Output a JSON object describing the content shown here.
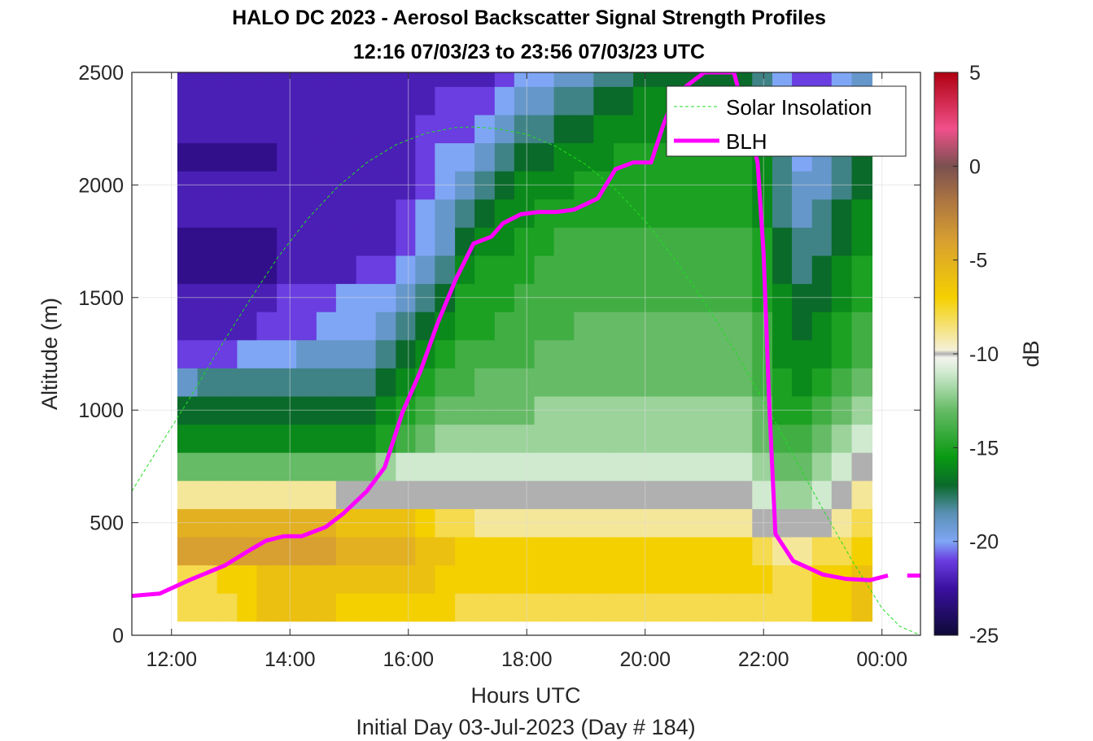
{
  "chart_data": {
    "type": "heatmap",
    "title": "HALO DC 2023 - Aerosol Backscatter Signal Strength Profiles",
    "subtitle": "12:16 07/03/23 to 23:56 07/03/23  UTC",
    "xlabel": "Hours UTC",
    "xlabel2": "Initial Day 03-Jul-2023 (Day # 184)",
    "ylabel": "Altitude (m)",
    "colorbar_label": "dB",
    "xlim": [
      11.33,
      24.65
    ],
    "ylim": [
      0,
      2500
    ],
    "clim": [
      -25,
      5
    ],
    "x_tick_labels": [
      "12:00",
      "14:00",
      "16:00",
      "18:00",
      "20:00",
      "22:00",
      "00:00"
    ],
    "x_tick_values": [
      12,
      14,
      16,
      18,
      20,
      22,
      24
    ],
    "y_tick_values": [
      0,
      500,
      1000,
      1500,
      2000,
      2500
    ],
    "colorbar_ticks": [
      5,
      0,
      -5,
      -10,
      -15,
      -20,
      -25
    ],
    "colormap": [
      {
        "v": -25,
        "c": "#0d0a35"
      },
      {
        "v": -22.5,
        "c": "#3a10a0"
      },
      {
        "v": -21,
        "c": "#6a3ee0"
      },
      {
        "v": -20,
        "c": "#7fa6f5"
      },
      {
        "v": -18.5,
        "c": "#5a90b4"
      },
      {
        "v": -17,
        "c": "#0a6a2a"
      },
      {
        "v": -15.5,
        "c": "#0a9a12"
      },
      {
        "v": -13,
        "c": "#66bb66"
      },
      {
        "v": -11,
        "c": "#d0ead0"
      },
      {
        "v": -10.2,
        "c": "#f4f4ee"
      },
      {
        "v": -10,
        "c": "#b0b0b0"
      },
      {
        "v": -9.8,
        "c": "#f5f0d8"
      },
      {
        "v": -7,
        "c": "#f5d000"
      },
      {
        "v": -4,
        "c": "#d8a030"
      },
      {
        "v": -2,
        "c": "#b07840"
      },
      {
        "v": 0,
        "c": "#7a5050"
      },
      {
        "v": 2,
        "c": "#f0508a"
      },
      {
        "v": 5,
        "c": "#b00010"
      }
    ],
    "heatmap": {
      "x_start": 12.27,
      "x_end": 23.93,
      "y_start": 125,
      "y_end": 2500,
      "altitude_levels": [
        125,
        250,
        375,
        500,
        625,
        750,
        875,
        1000,
        1125,
        1250,
        1375,
        1500,
        1625,
        1750,
        1875,
        2000,
        2125,
        2250,
        2375,
        2500
      ],
      "hours": [
        12.27,
        12.61,
        12.94,
        13.28,
        13.61,
        13.95,
        14.28,
        14.62,
        14.95,
        15.29,
        15.62,
        15.96,
        16.29,
        16.62,
        16.96,
        17.29,
        17.63,
        17.96,
        18.3,
        18.63,
        18.97,
        19.3,
        19.64,
        19.97,
        20.31,
        20.64,
        20.98,
        21.31,
        21.65,
        21.98,
        22.32,
        22.65,
        22.99,
        23.32,
        23.66
      ],
      "profiles_db": [
        [
          -8,
          -8,
          -4,
          -5,
          -9,
          -13,
          -16,
          -17,
          -19,
          -21,
          -22,
          -22,
          -23,
          -23,
          -22,
          -22,
          -23,
          -22,
          -22,
          -22
        ],
        [
          -8,
          -8,
          -4,
          -5,
          -9,
          -13,
          -16,
          -17,
          -18,
          -21,
          -22,
          -22,
          -23,
          -23,
          -22,
          -22,
          -23,
          -22,
          -22,
          -22
        ],
        [
          -8,
          -7,
          -4,
          -5,
          -9,
          -13,
          -16,
          -17,
          -18,
          -21,
          -22,
          -22,
          -23,
          -23,
          -22,
          -22,
          -23,
          -22,
          -22,
          -22
        ],
        [
          -7,
          -7,
          -4,
          -5,
          -9,
          -13,
          -16,
          -17,
          -18,
          -20,
          -22,
          -22,
          -23,
          -23,
          -22,
          -22,
          -23,
          -22,
          -22,
          -22
        ],
        [
          -6,
          -6,
          -4,
          -5,
          -9,
          -13,
          -16,
          -17,
          -18,
          -20,
          -21,
          -22,
          -23,
          -23,
          -22,
          -22,
          -23,
          -22,
          -22,
          -22
        ],
        [
          -6,
          -6,
          -4,
          -5,
          -9,
          -13,
          -16,
          -17,
          -18,
          -20,
          -21,
          -21,
          -22,
          -22,
          -22,
          -22,
          -22,
          -22,
          -22,
          -22
        ],
        [
          -6,
          -6,
          -4,
          -5,
          -9,
          -13,
          -16,
          -17,
          -18,
          -19,
          -21,
          -21,
          -22,
          -22,
          -22,
          -22,
          -22,
          -22,
          -22,
          -22
        ],
        [
          -6,
          -6,
          -4,
          -5,
          -9,
          -13,
          -16,
          -17,
          -18,
          -19,
          -20,
          -21,
          -22,
          -22,
          -22,
          -22,
          -22,
          -22,
          -22,
          -22
        ],
        [
          -7,
          -6,
          -5,
          -6,
          -10,
          -13,
          -16,
          -17,
          -18,
          -19,
          -20,
          -20,
          -22,
          -22,
          -22,
          -22,
          -22,
          -22,
          -22,
          -22
        ],
        [
          -7,
          -6,
          -5,
          -6,
          -10,
          -13,
          -16,
          -17,
          -18,
          -19,
          -20,
          -20,
          -21,
          -22,
          -22,
          -22,
          -22,
          -22,
          -22,
          -22
        ],
        [
          -7,
          -6,
          -5,
          -6,
          -10,
          -12,
          -15,
          -16,
          -17,
          -18,
          -19,
          -20,
          -21,
          -22,
          -22,
          -22,
          -22,
          -22,
          -22,
          -22
        ],
        [
          -7,
          -6,
          -5,
          -6,
          -10,
          -11,
          -14,
          -15,
          -16,
          -17,
          -18,
          -19,
          -20,
          -21,
          -21,
          -22,
          -22,
          -22,
          -22,
          -22
        ],
        [
          -7,
          -6,
          -6,
          -7,
          -10,
          -11,
          -13,
          -14,
          -15,
          -16,
          -17,
          -18,
          -19,
          -20,
          -20,
          -21,
          -21,
          -21,
          -22,
          -22
        ],
        [
          -7,
          -7,
          -6,
          -8,
          -10,
          -11,
          -12,
          -13,
          -14,
          -15,
          -16,
          -17,
          -18,
          -19,
          -19,
          -20,
          -20,
          -21,
          -21,
          -22
        ],
        [
          -8,
          -7,
          -7,
          -8,
          -10,
          -11,
          -12,
          -13,
          -14,
          -14,
          -15,
          -15,
          -16,
          -17,
          -18,
          -19,
          -20,
          -21,
          -21,
          -22
        ],
        [
          -8,
          -7,
          -7,
          -9,
          -10,
          -11,
          -12,
          -13,
          -13,
          -14,
          -15,
          -15,
          -15,
          -16,
          -17,
          -18,
          -19,
          -20,
          -21,
          -22
        ],
        [
          -8,
          -7,
          -7,
          -9,
          -10,
          -11,
          -12,
          -13,
          -13,
          -14,
          -14,
          -15,
          -15,
          -16,
          -16,
          -17,
          -18,
          -19,
          -20,
          -21
        ],
        [
          -8,
          -7,
          -7,
          -9,
          -10,
          -11,
          -12,
          -13,
          -13,
          -14,
          -14,
          -14,
          -15,
          -15,
          -16,
          -16,
          -17,
          -18,
          -19,
          -20
        ],
        [
          -8,
          -7,
          -7,
          -9,
          -10,
          -11,
          -12,
          -12,
          -13,
          -13,
          -14,
          -14,
          -14,
          -15,
          -15,
          -16,
          -17,
          -18,
          -19,
          -20
        ],
        [
          -8,
          -7,
          -7,
          -9,
          -10,
          -11,
          -12,
          -12,
          -13,
          -13,
          -14,
          -14,
          -14,
          -14,
          -15,
          -16,
          -16,
          -17,
          -18,
          -19
        ],
        [
          -8,
          -7,
          -7,
          -9,
          -10,
          -11,
          -12,
          -12,
          -13,
          -13,
          -13,
          -14,
          -14,
          -14,
          -15,
          -15,
          -16,
          -17,
          -18,
          -19
        ],
        [
          -8,
          -7,
          -7,
          -9,
          -10,
          -11,
          -12,
          -12,
          -13,
          -13,
          -13,
          -14,
          -14,
          -14,
          -15,
          -15,
          -16,
          -16,
          -17,
          -18
        ],
        [
          -8,
          -7,
          -7,
          -9,
          -10,
          -11,
          -12,
          -12,
          -13,
          -13,
          -13,
          -14,
          -14,
          -14,
          -15,
          -15,
          -15,
          -16,
          -17,
          -18
        ],
        [
          -8,
          -7,
          -7,
          -9,
          -10,
          -11,
          -12,
          -12,
          -13,
          -13,
          -13,
          -14,
          -14,
          -14,
          -15,
          -15,
          -15,
          -16,
          -16,
          -17
        ],
        [
          -8,
          -7,
          -7,
          -9,
          -10,
          -11,
          -12,
          -12,
          -13,
          -13,
          -13,
          -14,
          -14,
          -14,
          -15,
          -15,
          -15,
          -16,
          -16,
          -17
        ],
        [
          -8,
          -7,
          -7,
          -9,
          -10,
          -11,
          -12,
          -12,
          -13,
          -13,
          -13,
          -14,
          -14,
          -14,
          -15,
          -15,
          -15,
          -16,
          -16,
          -17
        ],
        [
          -8,
          -7,
          -7,
          -9,
          -10,
          -11,
          -12,
          -12,
          -13,
          -13,
          -13,
          -14,
          -14,
          -14,
          -15,
          -15,
          -15,
          -16,
          -16,
          -17
        ],
        [
          -8,
          -7,
          -7,
          -9,
          -10,
          -11,
          -12,
          -12,
          -13,
          -13,
          -13,
          -14,
          -14,
          -14,
          -15,
          -15,
          -15,
          -16,
          -16,
          -17
        ],
        [
          -8,
          -7,
          -7,
          -9,
          -10,
          -11,
          -12,
          -12,
          -13,
          -13,
          -13,
          -14,
          -14,
          -14,
          -15,
          -15,
          -15,
          -16,
          -16,
          -17
        ],
        [
          -8,
          -7,
          -8,
          -10,
          -11,
          -12,
          -13,
          -13,
          -14,
          -14,
          -14,
          -15,
          -15,
          -15,
          -16,
          -16,
          -16,
          -17,
          -17,
          -18
        ],
        [
          -8,
          -8,
          -9,
          -10,
          -12,
          -13,
          -14,
          -15,
          -15,
          -16,
          -16,
          -16,
          -17,
          -17,
          -18,
          -18,
          -18,
          -19,
          -19,
          -20
        ],
        [
          -8,
          -8,
          -9,
          -10,
          -12,
          -13,
          -14,
          -15,
          -16,
          -16,
          -17,
          -17,
          -18,
          -18,
          -19,
          -19,
          -20,
          -20,
          -21,
          -21
        ],
        [
          -7,
          -7,
          -8,
          -10,
          -11,
          -12,
          -13,
          -14,
          -15,
          -16,
          -16,
          -17,
          -17,
          -18,
          -18,
          -19,
          -19,
          -20,
          -20,
          -21
        ],
        [
          -7,
          -7,
          -8,
          -9,
          -10,
          -11,
          -12,
          -13,
          -14,
          -15,
          -15,
          -16,
          -16,
          -17,
          -17,
          -18,
          -18,
          -19,
          -19,
          -20
        ],
        [
          -6,
          -6,
          -7,
          -8,
          -9,
          -10,
          -11,
          -12,
          -13,
          -14,
          -14,
          -15,
          -15,
          -16,
          -16,
          -17,
          -17,
          -18,
          -18,
          -19
        ]
      ]
    },
    "series": [
      {
        "name": "Solar Insolation",
        "color": "#22dd22",
        "style": "dashed",
        "x": [
          11.33,
          11.8,
          12.3,
          12.8,
          13.3,
          13.8,
          14.3,
          14.8,
          15.3,
          15.8,
          16.3,
          16.8,
          17.1,
          17.5,
          18.0,
          18.5,
          19.0,
          19.5,
          20.0,
          20.5,
          21.0,
          21.5,
          22.0,
          22.5,
          23.0,
          23.5,
          24.0,
          24.3,
          24.65
        ],
        "y": [
          640,
          840,
          1050,
          1270,
          1480,
          1680,
          1850,
          1990,
          2100,
          2180,
          2230,
          2255,
          2258,
          2250,
          2225,
          2170,
          2090,
          1980,
          1840,
          1670,
          1480,
          1270,
          1040,
          800,
          560,
          330,
          120,
          40,
          0
        ]
      },
      {
        "name": "BLH",
        "color": "#ff00ff",
        "style": "solid",
        "x": [
          11.33,
          11.8,
          12.3,
          12.9,
          13.3,
          13.6,
          13.9,
          14.2,
          14.6,
          14.9,
          15.3,
          15.6,
          15.9,
          16.2,
          16.5,
          16.8,
          17.1,
          17.4,
          17.6,
          17.9,
          18.2,
          18.5,
          18.8,
          19.2,
          19.5,
          19.8,
          20.1,
          20.3,
          20.5,
          21.0,
          21.5,
          21.9,
          22.0,
          22.1,
          22.2,
          22.5,
          23.0,
          23.4,
          23.8,
          24.1
        ],
        "y": [
          175,
          185,
          245,
          310,
          375,
          420,
          440,
          440,
          480,
          540,
          640,
          745,
          990,
          1170,
          1390,
          1580,
          1740,
          1770,
          1830,
          1870,
          1880,
          1880,
          1890,
          1940,
          2070,
          2100,
          2100,
          2260,
          2400,
          2500,
          2500,
          2100,
          1700,
          1000,
          450,
          330,
          270,
          250,
          245,
          265
        ]
      }
    ],
    "blh_isolated_points": [
      {
        "x": 24.55,
        "y": 265
      }
    ],
    "legend": {
      "placement": "top-right",
      "entries": [
        "Solar Insolation",
        "BLH"
      ]
    },
    "grid": true
  }
}
